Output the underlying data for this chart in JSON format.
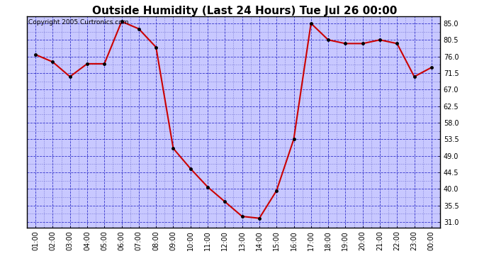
{
  "title": "Outside Humidity (Last 24 Hours) Tue Jul 26 00:00",
  "copyright": "Copyright 2005 Curtronics.com",
  "x_labels": [
    "01:00",
    "02:00",
    "03:00",
    "04:00",
    "05:00",
    "06:00",
    "07:00",
    "08:00",
    "09:00",
    "10:00",
    "11:00",
    "12:00",
    "13:00",
    "14:00",
    "15:00",
    "16:00",
    "17:00",
    "18:00",
    "19:00",
    "20:00",
    "21:00",
    "22:00",
    "23:00",
    "00:00"
  ],
  "y_values": [
    76.5,
    74.5,
    70.5,
    74.0,
    74.0,
    85.5,
    83.5,
    78.5,
    51.0,
    45.5,
    40.5,
    36.5,
    32.5,
    32.0,
    39.5,
    53.5,
    85.0,
    80.5,
    79.5,
    79.5,
    80.5,
    79.5,
    70.5,
    73.0
  ],
  "ylim_min": 29.5,
  "ylim_max": 87.0,
  "yticks": [
    31.0,
    35.5,
    40.0,
    44.5,
    49.0,
    53.5,
    58.0,
    62.5,
    67.0,
    71.5,
    76.0,
    80.5,
    85.0
  ],
  "line_color": "#cc0000",
  "marker_color": "#000000",
  "plot_bg_color": "#c8c8ff",
  "outer_bg_color": "#ffffff",
  "grid_color_major": "#3333cc",
  "grid_color_minor": "#6666cc",
  "title_fontsize": 11,
  "copyright_fontsize": 6.5,
  "tick_fontsize": 7,
  "border_color": "#000000"
}
